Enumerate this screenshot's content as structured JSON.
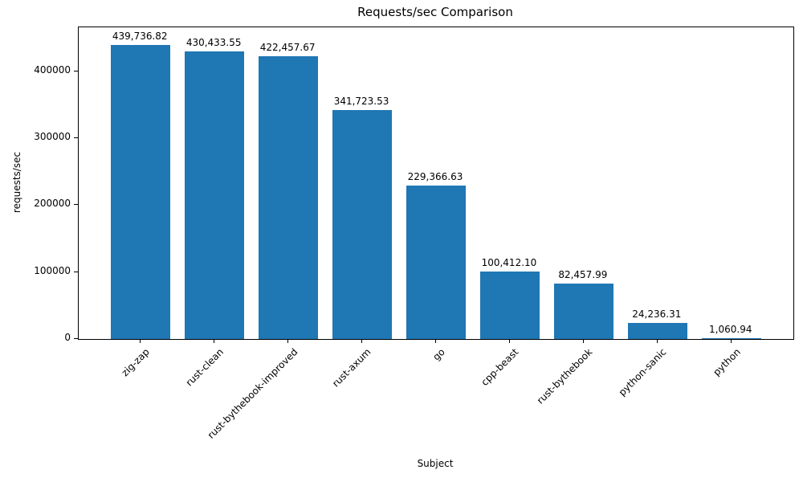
{
  "chart_data": {
    "type": "bar",
    "title": "Requests/sec Comparison",
    "xlabel": "Subject",
    "ylabel": "requests/sec",
    "categories": [
      "zig-zap",
      "rust-clean",
      "rust-bythebook-improved",
      "rust-axum",
      "go",
      "cpp-beast",
      "rust-bythebook",
      "python-sanic",
      "python"
    ],
    "values": [
      439736.82,
      430433.55,
      422457.67,
      341723.53,
      229366.63,
      100412.1,
      82457.99,
      24236.31,
      1060.94
    ],
    "value_labels": [
      "439,736.82",
      "430,433.55",
      "422,457.67",
      "341,723.53",
      "229,366.63",
      "100,412.10",
      "82,457.99",
      "24,236.31",
      "1,060.94"
    ],
    "y_ticks": [
      0,
      100000,
      200000,
      300000,
      400000
    ],
    "y_tick_labels": [
      "0",
      "100000",
      "200000",
      "300000",
      "400000"
    ],
    "ylim": [
      0,
      466000
    ],
    "bar_color": "#1f77b4",
    "grid": false,
    "legend": null
  }
}
